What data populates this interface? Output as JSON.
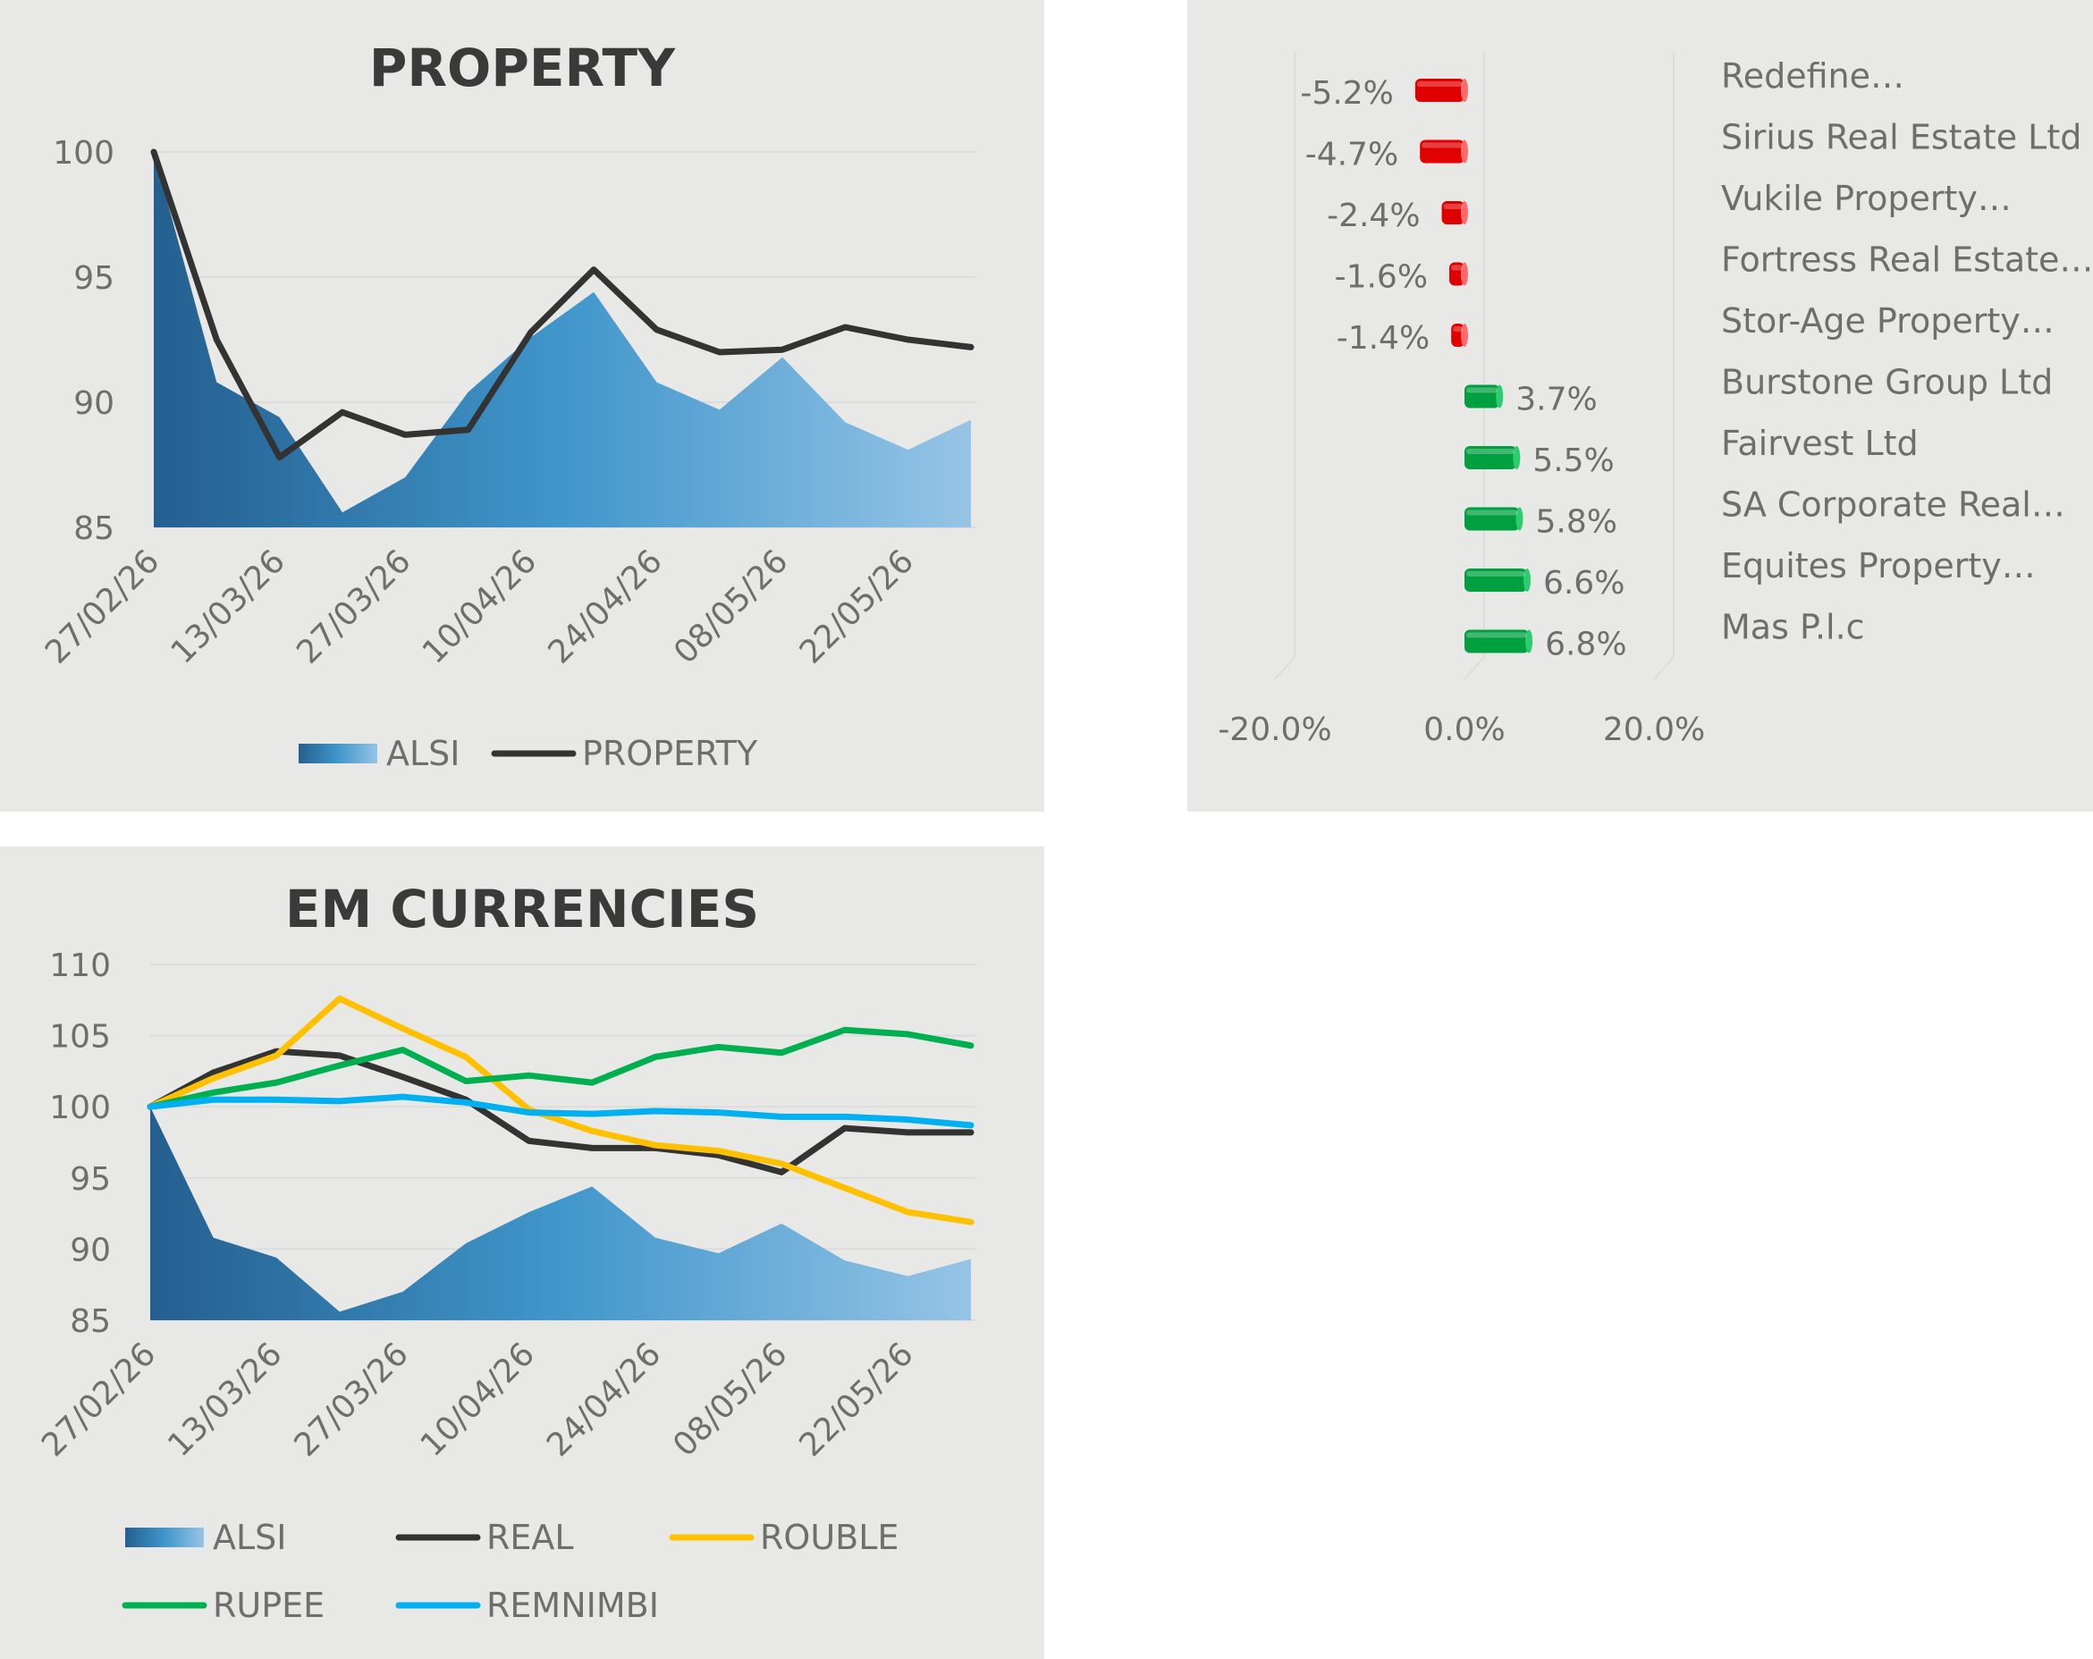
{
  "colors": {
    "panel_bg": "#e8e8e7",
    "grid": "#dcdcdc",
    "text": "#6e6e6e",
    "title": "#3a3a3a",
    "alsi_dark": "#245f8f",
    "alsi_mid": "#4096cb",
    "alsi_light": "#96c4e6",
    "property_line": "#333333",
    "real": "#333333",
    "rouble": "#ffc000",
    "rupee": "#00b050",
    "remnimbi": "#00b0f0",
    "negative_bar": "#e00000",
    "positive_bar": "#00a040"
  },
  "chart_data": [
    {
      "id": "property",
      "type": "area+line",
      "title": "PROPERTY",
      "dates": [
        "27/02/26",
        "06/03/26",
        "13/03/26",
        "20/03/26",
        "27/03/26",
        "03/04/26",
        "10/04/26",
        "17/04/26",
        "24/04/26",
        "01/05/26",
        "08/05/26",
        "15/05/26",
        "22/05/26",
        "29/05/26"
      ],
      "x_tick_labels": [
        "27/02/26",
        "13/03/26",
        "27/03/26",
        "10/04/26",
        "24/04/26",
        "08/05/26",
        "22/05/26"
      ],
      "ylim": [
        85,
        100
      ],
      "y_ticks": [
        "85",
        "90",
        "95",
        "100"
      ],
      "series": [
        {
          "name": "ALSI",
          "kind": "area",
          "values": [
            100,
            90.8,
            89.4,
            85.6,
            87.0,
            90.4,
            92.6,
            94.4,
            90.8,
            89.7,
            91.8,
            89.2,
            88.1,
            89.3
          ]
        },
        {
          "name": "PROPERTY",
          "kind": "line",
          "values": [
            100,
            92.5,
            87.8,
            89.6,
            88.7,
            88.9,
            92.8,
            95.3,
            92.9,
            92.0,
            92.1,
            93.0,
            92.5,
            92.2
          ]
        }
      ],
      "legend": [
        "ALSI",
        "PROPERTY"
      ],
      "legend_position": "bottom",
      "grid": true
    },
    {
      "id": "property-stocks",
      "type": "bar",
      "orientation": "horizontal",
      "categories": [
        "Redefine…",
        "Sirius Real Estate Ltd",
        "Vukile Property…",
        "Fortress Real Estate…",
        "Stor-Age Property…",
        "Burstone Group Ltd",
        "Fairvest Ltd",
        "SA Corporate Real…",
        "Equites Property…",
        "Mas P.l.c"
      ],
      "values": [
        -5.2,
        -4.7,
        -2.4,
        -1.6,
        -1.4,
        3.7,
        5.5,
        5.8,
        6.6,
        6.8
      ],
      "labels": [
        "-5.2%",
        "-4.7%",
        "-2.4%",
        "-1.6%",
        "-1.4%",
        "3.7%",
        "5.5%",
        "5.8%",
        "6.6%",
        "6.8%"
      ],
      "xlim": [
        -20,
        20
      ],
      "x_ticks": [
        "-20.0%",
        "0.0%",
        "20.0%"
      ],
      "grid": true
    },
    {
      "id": "em-currencies",
      "type": "area+line",
      "title": "EM CURRENCIES",
      "dates": [
        "27/02/26",
        "06/03/26",
        "13/03/26",
        "20/03/26",
        "27/03/26",
        "03/04/26",
        "10/04/26",
        "17/04/26",
        "24/04/26",
        "01/05/26",
        "08/05/26",
        "15/05/26",
        "22/05/26",
        "29/05/26"
      ],
      "x_tick_labels": [
        "27/02/26",
        "13/03/26",
        "27/03/26",
        "10/04/26",
        "24/04/26",
        "08/05/26",
        "22/05/26"
      ],
      "ylim": [
        85,
        110
      ],
      "y_ticks": [
        "85",
        "90",
        "95",
        "100",
        "105",
        "110"
      ],
      "series": [
        {
          "name": "ALSI",
          "kind": "area",
          "values": [
            100,
            90.8,
            89.4,
            85.6,
            87.0,
            90.4,
            92.6,
            94.4,
            90.8,
            89.7,
            91.8,
            89.2,
            88.1,
            89.3
          ]
        },
        {
          "name": "REAL",
          "kind": "line",
          "values": [
            100,
            102.4,
            103.9,
            103.6,
            102.1,
            100.5,
            97.6,
            97.1,
            97.1,
            96.6,
            95.4,
            98.5,
            98.2,
            98.2
          ]
        },
        {
          "name": "ROUBLE",
          "kind": "line",
          "values": [
            100,
            102.0,
            103.6,
            107.6,
            105.5,
            103.5,
            99.8,
            98.3,
            97.3,
            96.9,
            96.0,
            94.3,
            92.6,
            91.9
          ]
        },
        {
          "name": "RUPEE",
          "kind": "line",
          "values": [
            100,
            101.0,
            101.7,
            102.9,
            104.0,
            101.8,
            102.2,
            101.7,
            103.5,
            104.2,
            103.8,
            105.4,
            105.1,
            104.3
          ]
        },
        {
          "name": "REMNIMBI",
          "kind": "line",
          "values": [
            100,
            100.5,
            100.5,
            100.4,
            100.7,
            100.3,
            99.6,
            99.5,
            99.7,
            99.6,
            99.3,
            99.3,
            99.1,
            98.7
          ]
        }
      ],
      "legend": [
        "ALSI",
        "REAL",
        "ROUBLE",
        "RUPEE",
        "REMNIMBI"
      ],
      "legend_position": "bottom",
      "grid": true
    }
  ]
}
